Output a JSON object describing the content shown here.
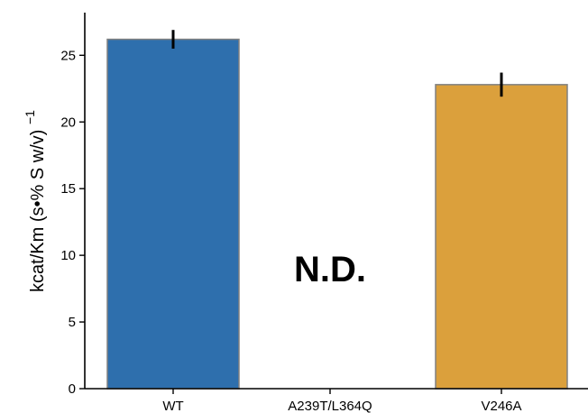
{
  "chart_data": {
    "type": "bar",
    "categories": [
      "WT",
      "A239T/L364Q",
      "V246A"
    ],
    "values": [
      26.2,
      null,
      22.8
    ],
    "errors": [
      0.7,
      null,
      0.9
    ],
    "colors": [
      "#2e6fad",
      "#ffffff",
      "#dba03c"
    ],
    "title": "",
    "xlabel": "",
    "ylabel": "kcat/Km (s•% S w/v)",
    "ylabel_superscript": "−1",
    "ylim": [
      0,
      28.2
    ],
    "yticks": [
      0,
      5,
      10,
      15,
      20,
      25
    ],
    "annotations": [
      {
        "text": "N.D.",
        "category": "A239T/L364Q"
      }
    ],
    "grid": false,
    "legend": false
  }
}
